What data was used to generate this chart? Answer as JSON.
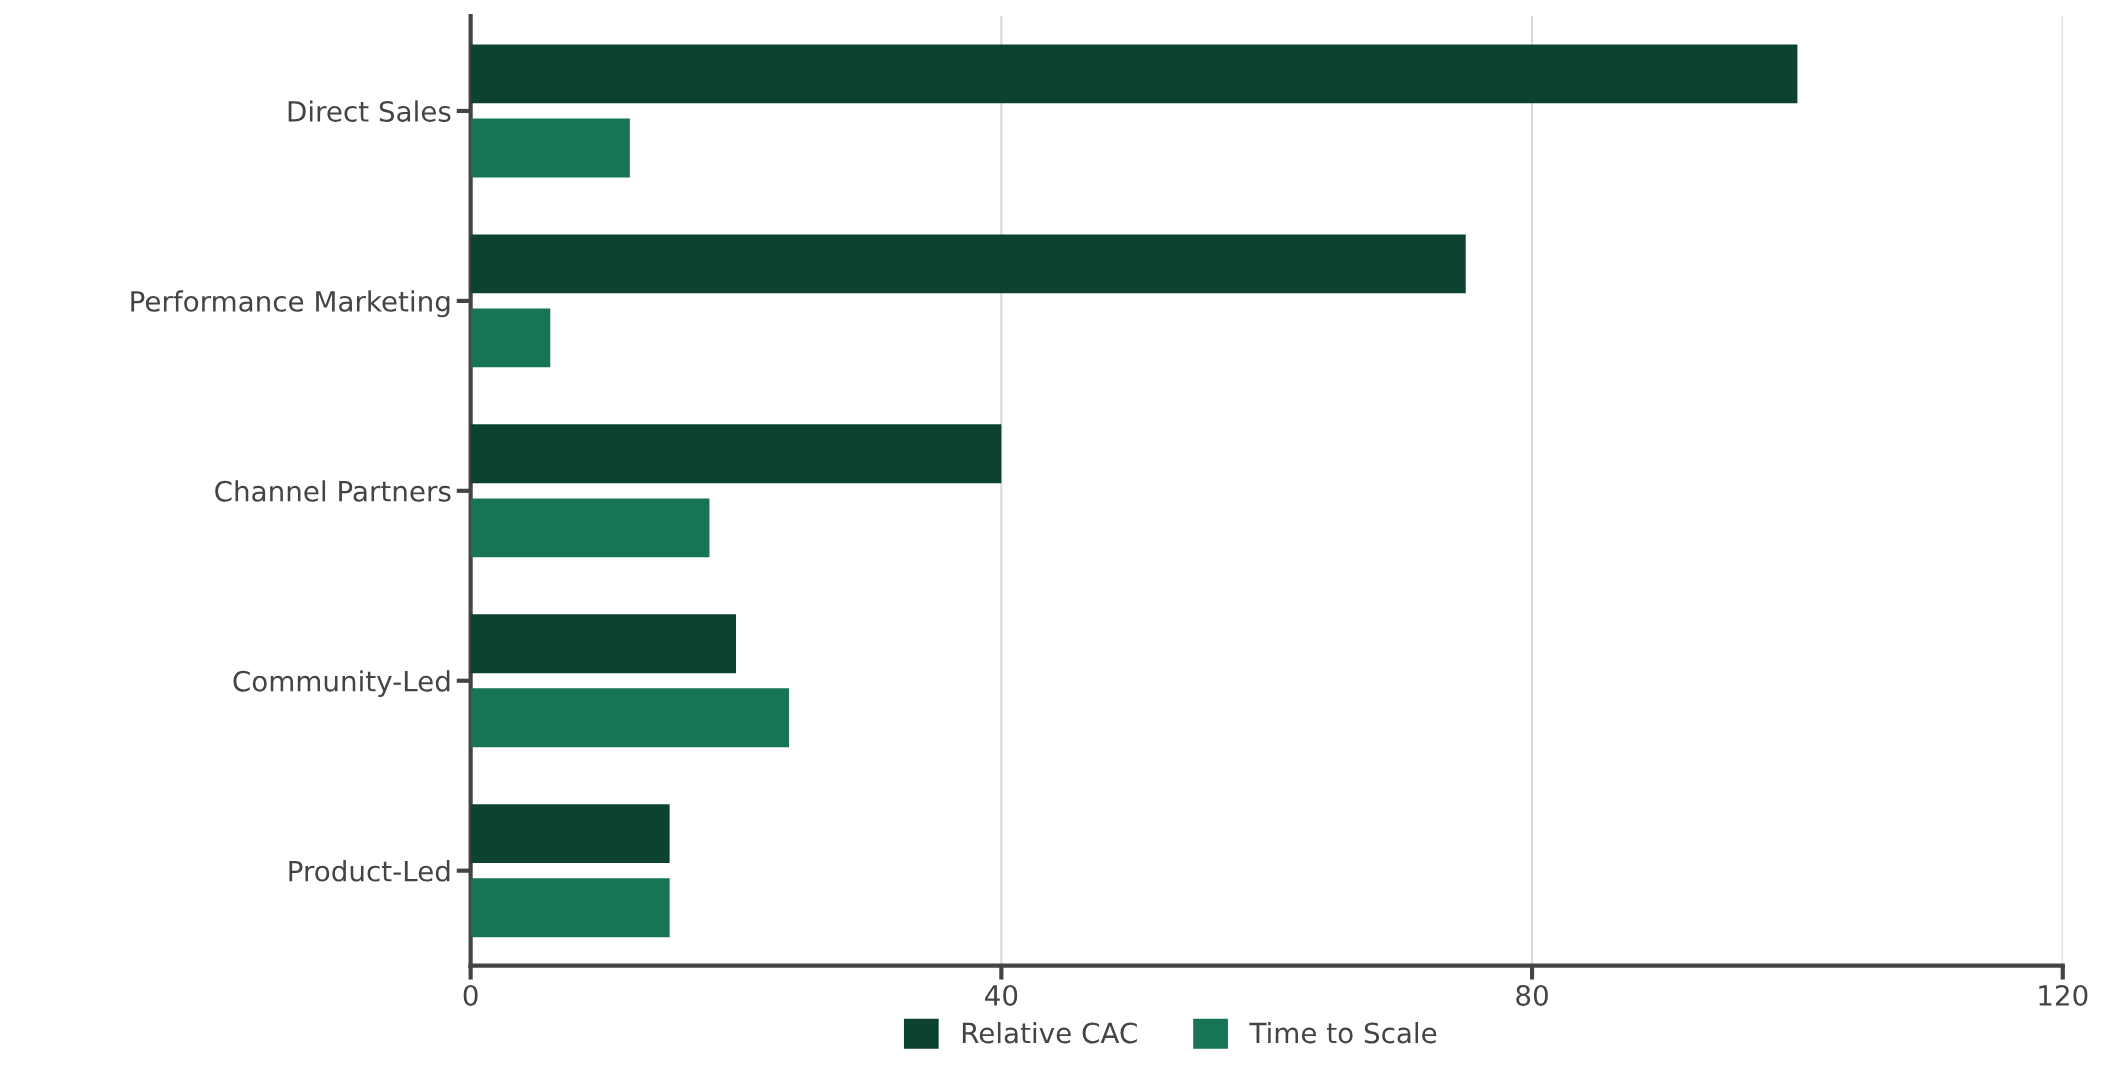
{
  "chart_data": {
    "type": "bar",
    "orientation": "horizontal",
    "categories": [
      "Direct Sales",
      "Performance Marketing",
      "Channel Partners",
      "Community-Led",
      "Product-Led"
    ],
    "series": [
      {
        "name": "Relative CAC",
        "color": "#0d4230",
        "values": [
          100,
          75,
          40,
          20,
          15
        ]
      },
      {
        "name": "Time to Scale",
        "color": "#177456",
        "values": [
          12,
          6,
          18,
          24,
          15
        ]
      }
    ],
    "xlim": [
      0,
      120
    ],
    "xticks": [
      0,
      40,
      80,
      120
    ],
    "grid": "x",
    "legend": "bottom"
  }
}
